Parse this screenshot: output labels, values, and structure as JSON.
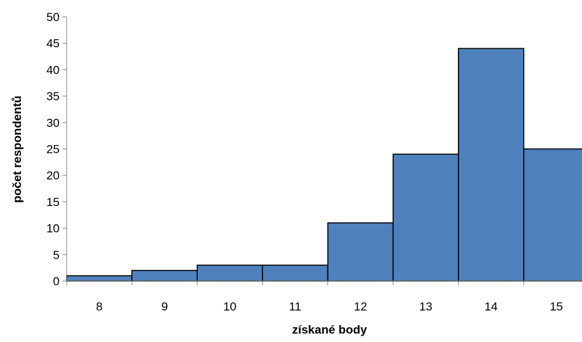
{
  "chart_data": {
    "type": "bar",
    "categories": [
      "8",
      "9",
      "10",
      "11",
      "12",
      "13",
      "14",
      "15"
    ],
    "values": [
      1,
      2,
      3,
      3,
      11,
      24,
      44,
      25
    ],
    "title": "",
    "xlabel": "získané body",
    "ylabel": "počet respondentů",
    "ylim": [
      0,
      50
    ],
    "yticks": [
      "0",
      "5",
      "10",
      "15",
      "20",
      "25",
      "30",
      "35",
      "40",
      "45",
      "50"
    ],
    "grid": false,
    "bar_color": "#4f81bd",
    "bar_edge_color": "#000000"
  }
}
